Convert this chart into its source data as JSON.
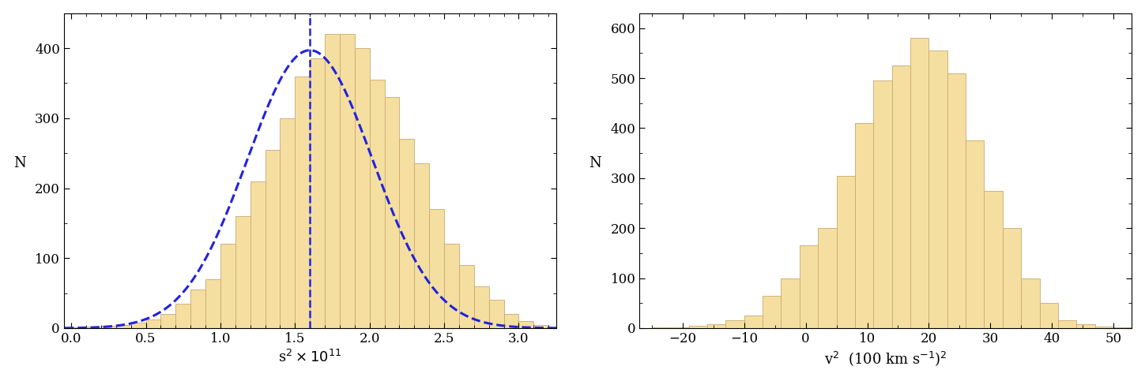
{
  "left_hist": {
    "bar_heights": [
      1,
      2,
      3,
      5,
      8,
      12,
      20,
      35,
      55,
      70,
      120,
      160,
      210,
      255,
      300,
      360,
      385,
      420,
      420,
      400,
      355,
      330,
      270,
      235,
      170,
      120,
      90,
      60,
      40,
      20,
      10,
      5
    ],
    "bin_start": 0.0,
    "bin_end": 3.2,
    "bar_color": "#f5dfa0",
    "edge_color": "#c8a870",
    "xlabel": "s$^2\\times10^{11}$",
    "ylabel": "N",
    "xlim": [
      -0.05,
      3.25
    ],
    "ylim": [
      0,
      450
    ],
    "xticks": [
      0.0,
      0.5,
      1.0,
      1.5,
      2.0,
      2.5,
      3.0
    ],
    "yticks": [
      0,
      100,
      200,
      300,
      400
    ],
    "gaussian_mean": 1.6,
    "gaussian_std": 0.42,
    "gaussian_peak": 397,
    "dashed_x": 1.6,
    "dashed_color": "#2222dd",
    "curve_color": "#2222dd"
  },
  "right_hist": {
    "bar_heights": [
      1,
      2,
      4,
      8,
      15,
      25,
      65,
      100,
      165,
      200,
      305,
      410,
      495,
      525,
      580,
      555,
      510,
      375,
      275,
      200,
      100,
      50,
      15,
      8,
      3,
      1
    ],
    "bin_start": -25,
    "bin_width": 3,
    "bar_color": "#f5dfa0",
    "edge_color": "#c8a870",
    "xlabel": "v$^2$  (100 km s$^{-1}$)$^2$",
    "ylabel": "N",
    "xlim": [
      -27,
      53
    ],
    "ylim": [
      0,
      630
    ],
    "xticks": [
      -20,
      -10,
      0,
      10,
      20,
      30,
      40,
      50
    ],
    "yticks": [
      0,
      100,
      200,
      300,
      400,
      500,
      600
    ]
  },
  "figure_width": 14.49,
  "figure_height": 4.83,
  "bg_color": "#ffffff",
  "font_size": 13,
  "minor_tick_size": 3,
  "major_tick_size": 5
}
